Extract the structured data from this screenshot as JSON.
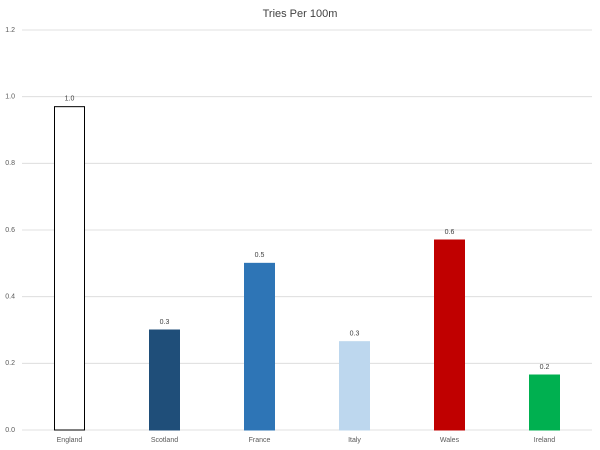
{
  "chart_data": {
    "type": "bar",
    "title": "Tries Per 100m",
    "categories": [
      "England",
      "Scotland",
      "France",
      "Italy",
      "Wales",
      "Ireland"
    ],
    "values": [
      0.97,
      0.3,
      0.5,
      0.265,
      0.57,
      0.165
    ],
    "value_labels": [
      "1.0",
      "0.3",
      "0.5",
      "0.3",
      "0.6",
      "0.2"
    ],
    "colors": [
      "#ffffff",
      "#1f4e79",
      "#2e75b6",
      "#bdd7ee",
      "#c00000",
      "#00b050"
    ],
    "edge_colors": [
      "#000000",
      "#1f4e79",
      "#2e75b6",
      "#bdd7ee",
      "#c00000",
      "#00b050"
    ],
    "ylim": [
      0,
      1.2
    ],
    "yticks": [
      {
        "value": 0,
        "label": "0.0"
      },
      0.2,
      0.4,
      0.6,
      0.8,
      {
        "value": 1,
        "label": "1.0"
      },
      1.2
    ],
    "grid": true
  }
}
